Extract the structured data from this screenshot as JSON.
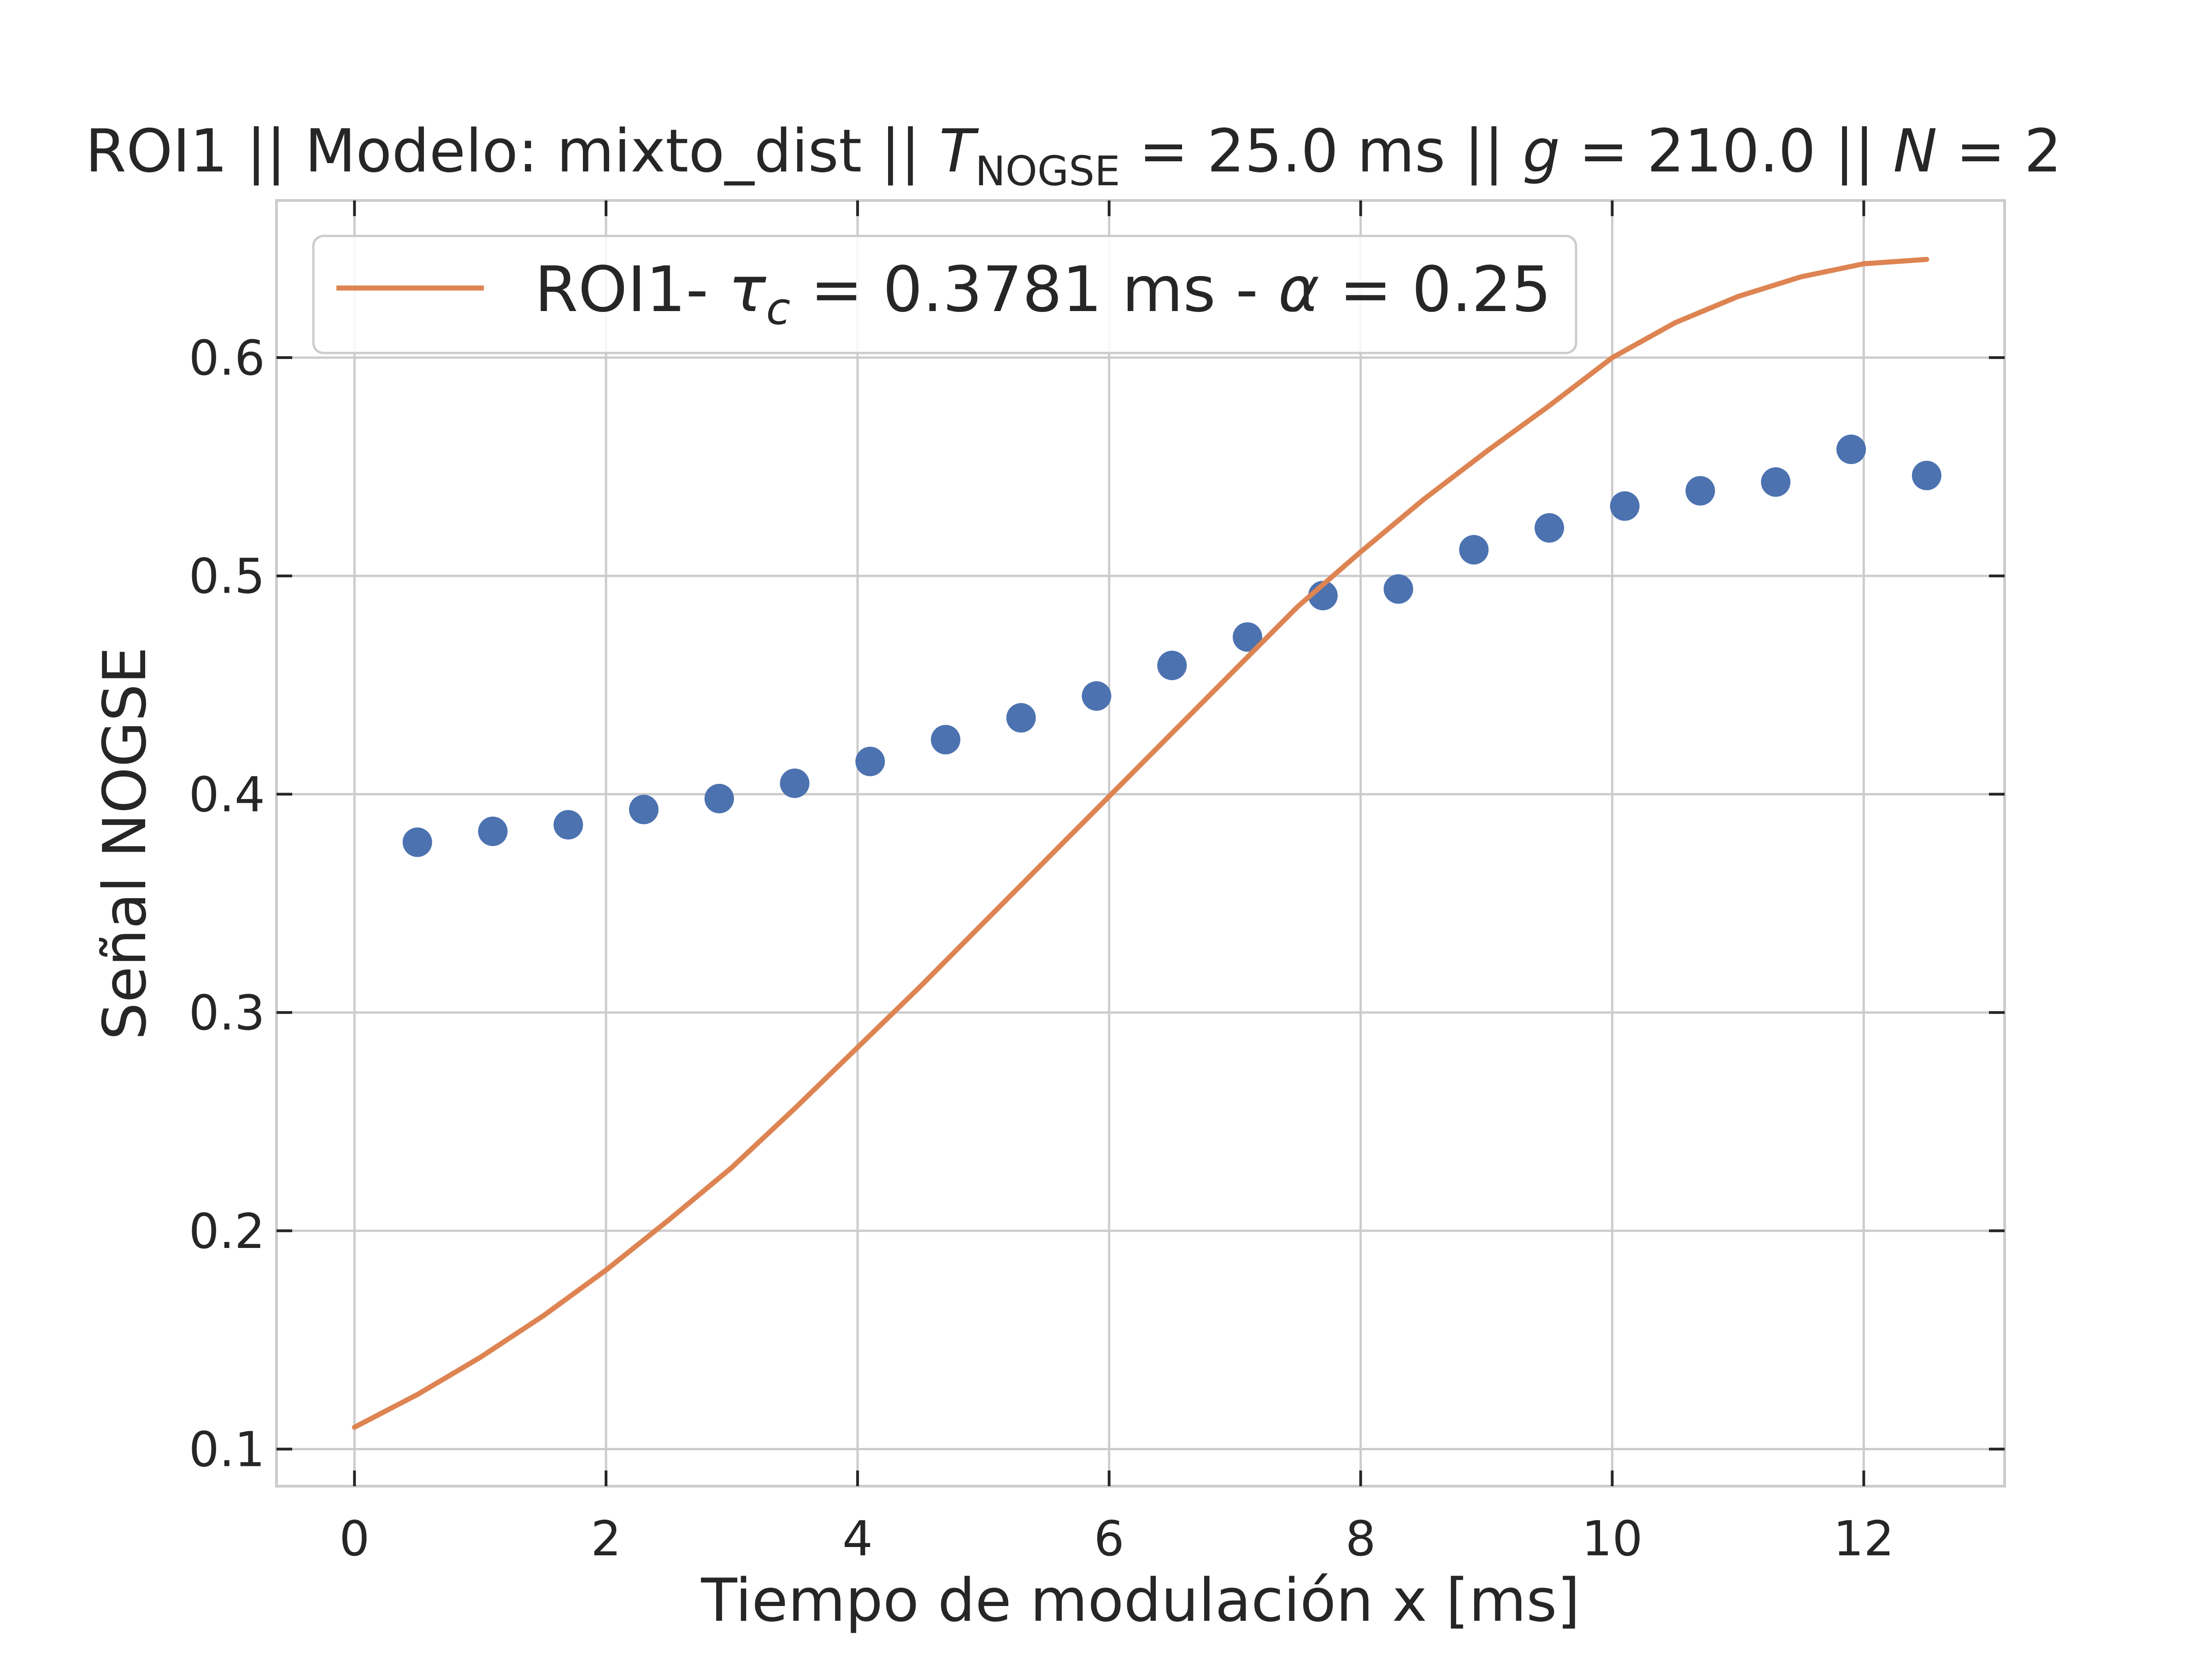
{
  "chart_data": {
    "type": "scatter",
    "title": {
      "prefix": "ROI1 || Modelo: mixto_dist || ",
      "t_symbol": "T",
      "t_subscript": "NOGSE",
      "t_value": " = 25.0 ms  ||  ",
      "g_symbol": "g",
      "g_value": " = 210.0 ||  ",
      "n_symbol": "N",
      "n_value": " = 2"
    },
    "xlabel": "Tiempo de modulación x [ms]",
    "ylabel": "Señal NOGSE",
    "xlim": [
      -0.62,
      13.12
    ],
    "ylim": [
      0.083,
      0.672
    ],
    "xticks": [
      0,
      2,
      4,
      6,
      8,
      10,
      12
    ],
    "yticks": [
      0.1,
      0.2,
      0.3,
      0.4,
      0.5,
      0.6
    ],
    "xtick_labels": [
      "0",
      "2",
      "4",
      "6",
      "8",
      "10",
      "12"
    ],
    "ytick_labels": [
      "0.1",
      "0.2",
      "0.3",
      "0.4",
      "0.5",
      "0.6"
    ],
    "grid": true,
    "legend_position": "upper-left",
    "series": [
      {
        "kind": "points",
        "color": "#4c72b0",
        "x": [
          0.5,
          1.1,
          1.7,
          2.3,
          2.9,
          3.5,
          4.1,
          4.7,
          5.3,
          5.9,
          6.5,
          7.1,
          7.7,
          8.3,
          8.9,
          9.5,
          10.1,
          10.7,
          11.3,
          11.9,
          12.5
        ],
        "y": [
          0.378,
          0.383,
          0.386,
          0.393,
          0.398,
          0.405,
          0.415,
          0.425,
          0.435,
          0.445,
          0.459,
          0.472,
          0.491,
          0.494,
          0.512,
          0.522,
          0.532,
          0.539,
          0.543,
          0.558,
          0.546
        ]
      },
      {
        "kind": "line",
        "color": "#dd8452",
        "legend": {
          "prefix": "ROI1- ",
          "tau_symbol": "τ",
          "tau_subscript": "c",
          "tau_value": " = 0.3781 ms - ",
          "alpha_symbol": "α",
          "alpha_value": " = 0.25"
        },
        "x": [
          0,
          0.5,
          1,
          1.5,
          2,
          2.5,
          3,
          3.5,
          4,
          4.5,
          5,
          5.5,
          6,
          6.5,
          7,
          7.5,
          8,
          8.5,
          9,
          9.5,
          10,
          10.5,
          11,
          11.5,
          12,
          12.5
        ],
        "y": [
          0.11,
          0.125,
          0.142,
          0.161,
          0.182,
          0.205,
          0.229,
          0.256,
          0.284,
          0.312,
          0.341,
          0.37,
          0.399,
          0.428,
          0.457,
          0.486,
          0.511,
          0.535,
          0.557,
          0.578,
          0.6,
          0.616,
          0.628,
          0.637,
          0.643,
          0.645
        ]
      }
    ]
  }
}
